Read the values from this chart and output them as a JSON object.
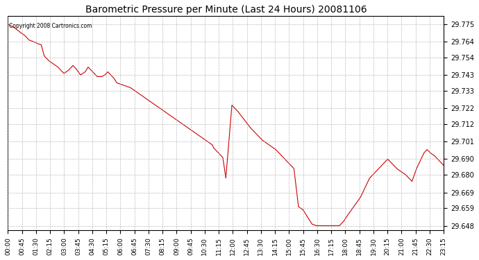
{
  "title": "Barometric Pressure per Minute (Last 24 Hours) 20081106",
  "copyright": "Copyright 2008 Cartronics.com",
  "background_color": "#ffffff",
  "plot_bg_color": "#ffffff",
  "line_color": "#cc0000",
  "grid_color": "#aaaaaa",
  "ylim": [
    29.645,
    29.78
  ],
  "yticks": [
    29.648,
    29.659,
    29.669,
    29.68,
    29.69,
    29.701,
    29.712,
    29.722,
    29.733,
    29.743,
    29.754,
    29.764,
    29.775
  ],
  "xtick_labels": [
    "00:00",
    "00:45",
    "01:30",
    "02:15",
    "03:00",
    "03:45",
    "04:30",
    "05:15",
    "06:00",
    "06:45",
    "07:30",
    "08:15",
    "09:00",
    "09:45",
    "10:30",
    "11:15",
    "12:00",
    "12:45",
    "13:30",
    "14:15",
    "15:00",
    "15:45",
    "16:30",
    "17:15",
    "18:00",
    "18:45",
    "19:30",
    "20:15",
    "21:00",
    "21:45",
    "22:30",
    "23:15"
  ],
  "kx": [
    0,
    20,
    40,
    55,
    70,
    85,
    95,
    110,
    120,
    135,
    150,
    165,
    175,
    185,
    200,
    215,
    225,
    240,
    255,
    265,
    275,
    285,
    295,
    310,
    320,
    330,
    340,
    350,
    360,
    375,
    390,
    405,
    420,
    435,
    450,
    465,
    480,
    495,
    510,
    525,
    540,
    555,
    570,
    585,
    600,
    615,
    630,
    645,
    660,
    675,
    680,
    690,
    700,
    710,
    720,
    740,
    760,
    780,
    800,
    820,
    840,
    855,
    870,
    885,
    895,
    905,
    915,
    925,
    935,
    945,
    960,
    975,
    985,
    995,
    1005,
    1020,
    1035,
    1050,
    1060,
    1075,
    1085,
    1095,
    1110,
    1120,
    1135,
    1150,
    1165,
    1175,
    1185,
    1195,
    1210,
    1225,
    1235,
    1245,
    1255,
    1265,
    1275,
    1285,
    1300,
    1315,
    1325,
    1335,
    1350,
    1365,
    1375,
    1385,
    1395,
    1410,
    1420,
    1430,
    1440
  ],
  "ky": [
    29.775,
    29.773,
    29.77,
    29.768,
    29.765,
    29.764,
    29.763,
    29.762,
    29.755,
    29.752,
    29.75,
    29.748,
    29.746,
    29.744,
    29.746,
    29.749,
    29.747,
    29.743,
    29.745,
    29.748,
    29.746,
    29.744,
    29.742,
    29.742,
    29.743,
    29.745,
    29.743,
    29.741,
    29.738,
    29.737,
    29.736,
    29.735,
    29.733,
    29.731,
    29.729,
    29.727,
    29.725,
    29.723,
    29.721,
    29.719,
    29.717,
    29.715,
    29.713,
    29.711,
    29.709,
    29.707,
    29.705,
    29.703,
    29.701,
    29.699,
    29.697,
    29.695,
    29.693,
    29.691,
    29.678,
    29.724,
    29.72,
    29.715,
    29.71,
    29.706,
    29.702,
    29.7,
    29.698,
    29.696,
    29.694,
    29.692,
    29.69,
    29.688,
    29.686,
    29.684,
    29.66,
    29.658,
    29.655,
    29.652,
    29.649,
    29.648,
    29.648,
    29.648,
    29.648,
    29.648,
    29.648,
    29.648,
    29.651,
    29.654,
    29.658,
    29.662,
    29.666,
    29.67,
    29.674,
    29.678,
    29.681,
    29.684,
    29.686,
    29.688,
    29.69,
    29.688,
    29.686,
    29.684,
    29.682,
    29.68,
    29.678,
    29.676,
    29.684,
    29.69,
    29.694,
    29.696,
    29.694,
    29.692,
    29.69,
    29.688,
    29.686
  ]
}
